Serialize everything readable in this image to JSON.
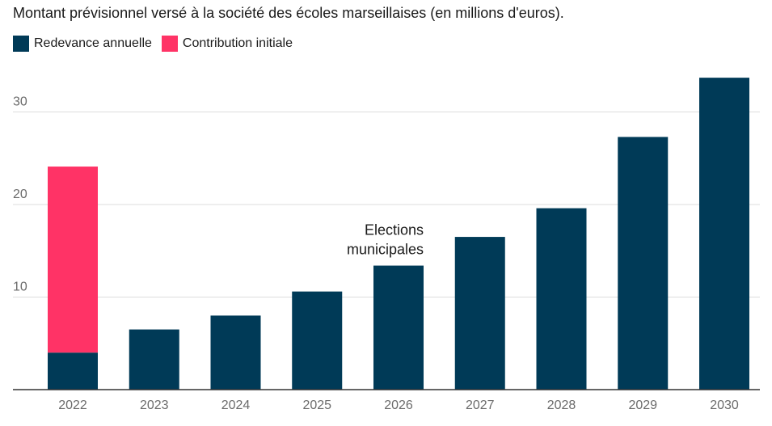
{
  "chart_data": {
    "type": "bar",
    "stacked": true,
    "title": "Montant prévisionnel versé à la société des écoles marseillaises (en millions d'euros).",
    "categories": [
      "2022",
      "2023",
      "2024",
      "2025",
      "2026",
      "2027",
      "2028",
      "2029",
      "2030"
    ],
    "series": [
      {
        "name": "Redevance annuelle",
        "color": "#003a57",
        "values": [
          4.0,
          6.5,
          8.0,
          10.6,
          13.4,
          16.5,
          19.6,
          27.3,
          33.7
        ]
      },
      {
        "name": "Contribution initiale",
        "color": "#ff3366",
        "values": [
          20.1,
          0,
          0,
          0,
          0,
          0,
          0,
          0,
          0
        ]
      }
    ],
    "yticks": [
      10,
      20,
      30
    ],
    "ylim": [
      0,
      35
    ],
    "grid": true,
    "legend_position": "top-left",
    "annotations": [
      {
        "category": "2026",
        "lines": [
          "Elections",
          "municipales"
        ]
      }
    ]
  }
}
